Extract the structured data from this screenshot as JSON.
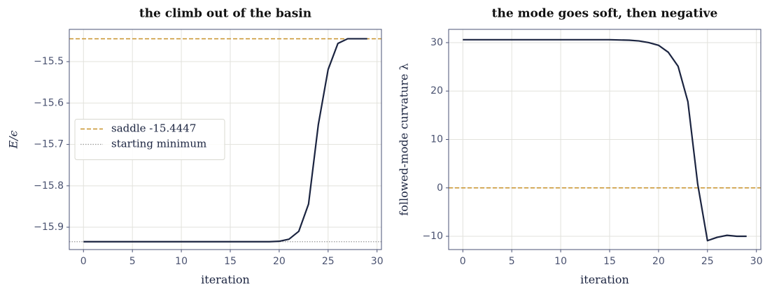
{
  "chart_data": [
    {
      "type": "line",
      "title": "the climb out of the basin",
      "xlabel": "iteration",
      "ylabel": "E/ϵ",
      "x": [
        0,
        1,
        2,
        3,
        4,
        5,
        6,
        7,
        8,
        9,
        10,
        11,
        12,
        13,
        14,
        15,
        16,
        17,
        18,
        19,
        20,
        21,
        22,
        23,
        24,
        25,
        26,
        27,
        28,
        29
      ],
      "series": [
        {
          "color": "#1b2440",
          "values": [
            -15.935,
            -15.935,
            -15.935,
            -15.935,
            -15.935,
            -15.935,
            -15.935,
            -15.935,
            -15.935,
            -15.935,
            -15.935,
            -15.935,
            -15.935,
            -15.935,
            -15.935,
            -15.935,
            -15.935,
            -15.935,
            -15.935,
            -15.935,
            -15.934,
            -15.929,
            -15.91,
            -15.844,
            -15.652,
            -15.519,
            -15.456,
            -15.4447,
            -15.4447,
            -15.4447
          ]
        }
      ],
      "ref_lines": [
        {
          "name": "saddle -15.4447",
          "value": -15.4447,
          "color": "#c8922a",
          "style": "dashed"
        },
        {
          "name": "starting minimum",
          "value": -15.935,
          "color": "#999999",
          "style": "dotted"
        }
      ],
      "xlim": [
        -1.45,
        30.45
      ],
      "xticks": [
        0,
        5,
        10,
        15,
        20,
        25,
        30
      ],
      "ylim": [
        -15.954,
        -15.422
      ],
      "yticks": [
        {
          "value": -15.9,
          "label": "−15.9"
        },
        {
          "value": -15.8,
          "label": "−15.8"
        },
        {
          "value": -15.7,
          "label": "−15.7"
        },
        {
          "value": -15.6,
          "label": "−15.6"
        },
        {
          "value": -15.5,
          "label": "−15.5"
        }
      ],
      "grid": true,
      "legend": "center left",
      "ylabel_italic": true
    },
    {
      "type": "line",
      "title": "the mode goes soft, then negative",
      "xlabel": "iteration",
      "ylabel": "followed-mode curvature λ",
      "x": [
        0,
        1,
        2,
        3,
        4,
        5,
        6,
        7,
        8,
        9,
        10,
        11,
        12,
        13,
        14,
        15,
        16,
        17,
        18,
        19,
        20,
        21,
        22,
        23,
        24,
        25,
        26,
        27,
        28,
        29
      ],
      "series": [
        {
          "color": "#1b2440",
          "values": [
            30.6,
            30.6,
            30.6,
            30.6,
            30.6,
            30.6,
            30.6,
            30.6,
            30.6,
            30.6,
            30.6,
            30.6,
            30.6,
            30.6,
            30.6,
            30.6,
            30.55,
            30.5,
            30.35,
            30.0,
            29.45,
            28.0,
            25.1,
            17.8,
            0.8,
            -10.9,
            -10.2,
            -9.8,
            -10.0,
            -10.0
          ]
        }
      ],
      "ref_lines": [
        {
          "value": 0,
          "color": "#c8922a",
          "style": "dashed"
        }
      ],
      "xlim": [
        -1.45,
        30.45
      ],
      "xticks": [
        0,
        5,
        10,
        15,
        20,
        25,
        30
      ],
      "ylim": [
        -12.74,
        32.74
      ],
      "yticks": [
        {
          "value": -10,
          "label": "−10"
        },
        0,
        10,
        20,
        30
      ],
      "grid": true,
      "ylabel_italic": false
    }
  ]
}
